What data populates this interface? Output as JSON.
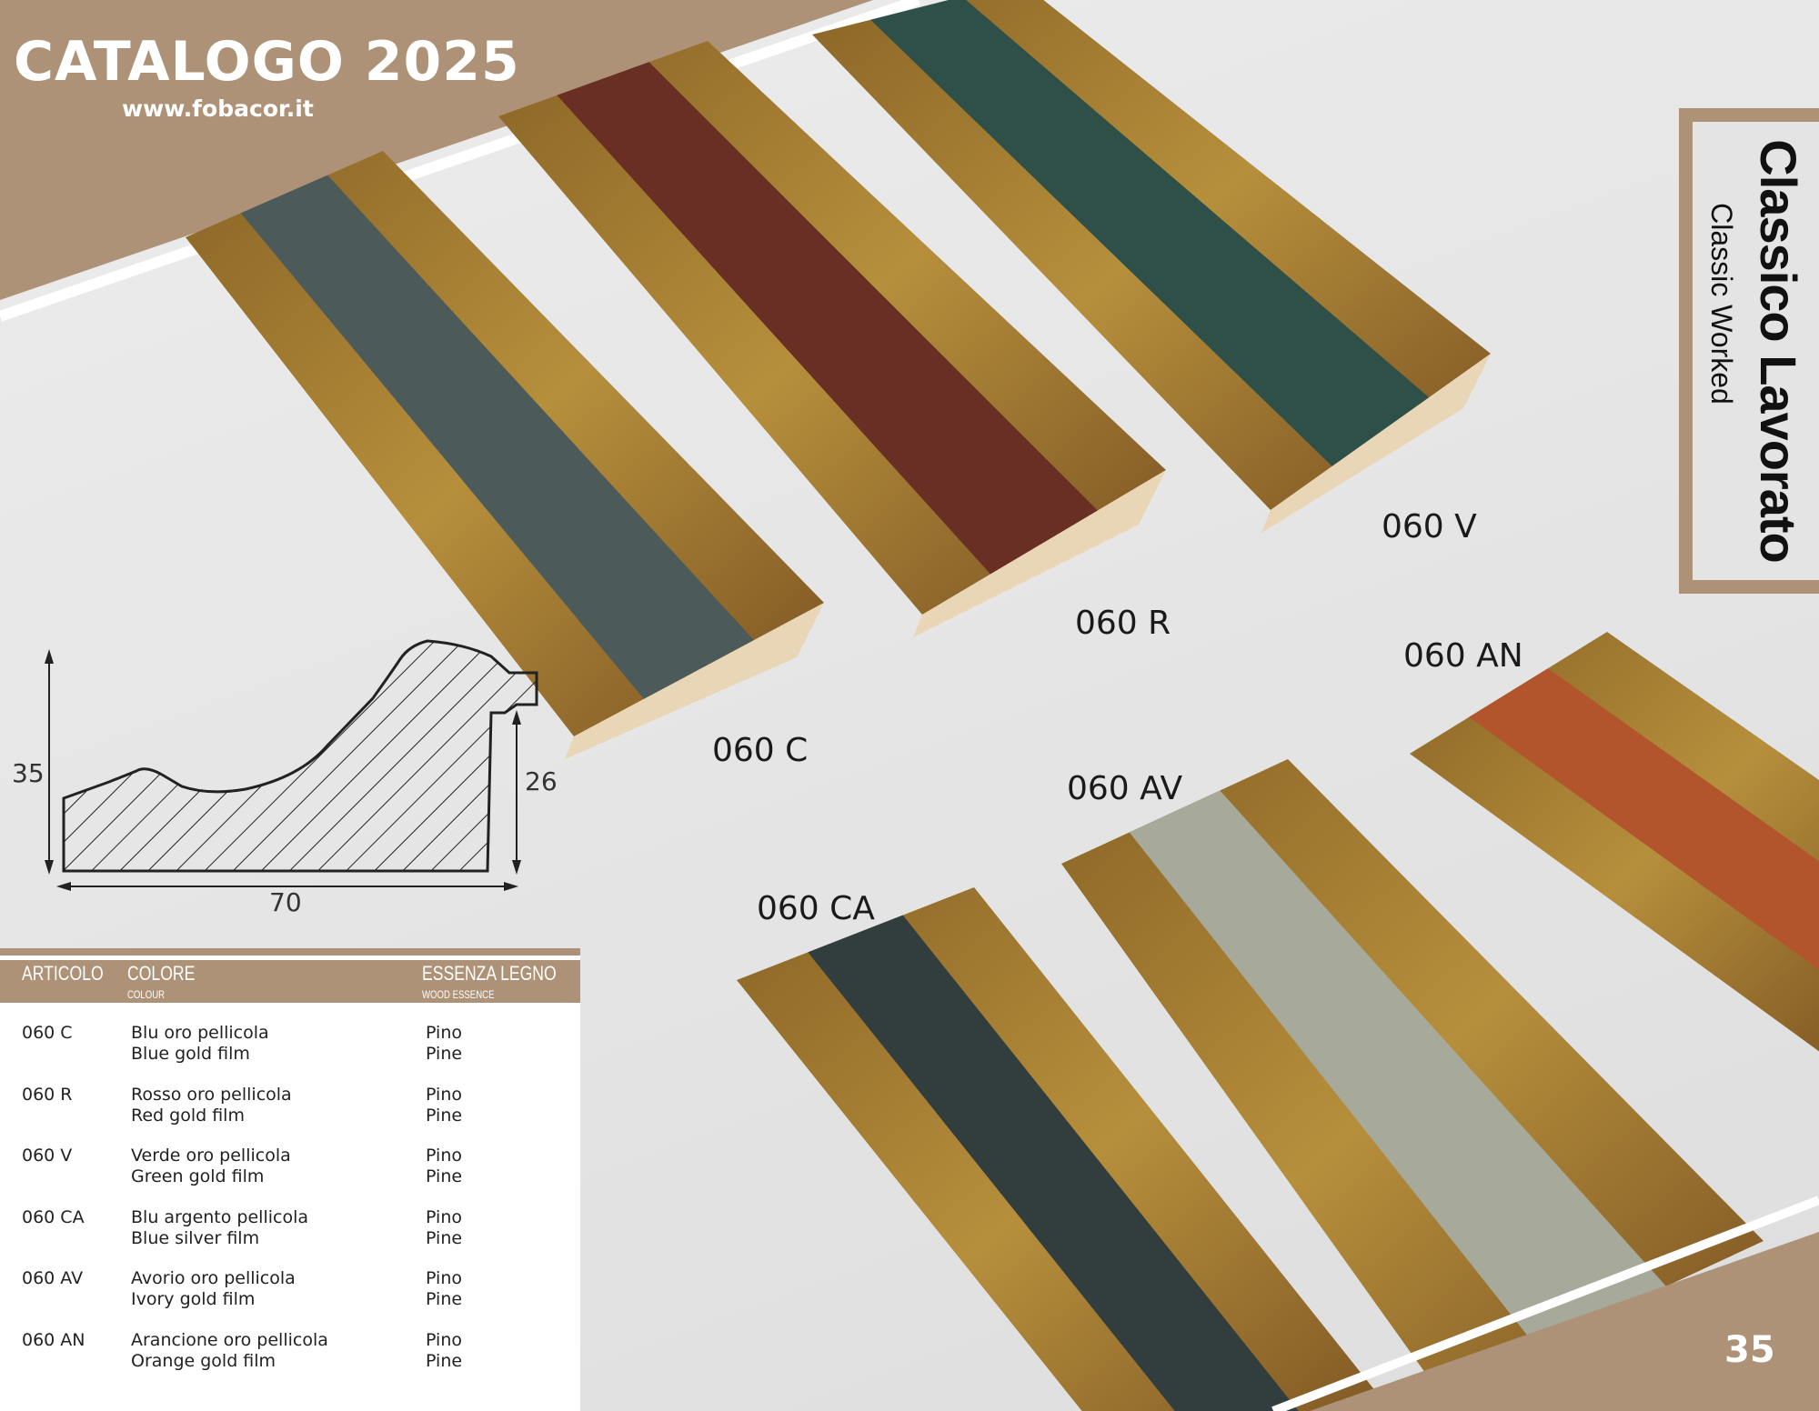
{
  "header": {
    "title": "CATALOGO 2025",
    "website": "www.fobacor.it"
  },
  "section": {
    "title": "Classico Lavorato",
    "subtitle": "Classic Worked"
  },
  "colors": {
    "brand_brown": "#ad9277",
    "background": "#e4e4e4"
  },
  "profile": {
    "height_total": "35",
    "height_rebate": "26",
    "width": "70"
  },
  "products": [
    {
      "code": "060 C",
      "stripe_color": "#4d5a5a"
    },
    {
      "code": "060 R",
      "stripe_color": "#6a2f24"
    },
    {
      "code": "060 V",
      "stripe_color": "#2f5048"
    },
    {
      "code": "060 CA",
      "stripe_color": "#323e3e"
    },
    {
      "code": "060 AV",
      "stripe_color": "#a7a99a"
    },
    {
      "code": "060 AN",
      "stripe_color": "#b3552c"
    }
  ],
  "table": {
    "headers": {
      "articolo": "ARTICOLO",
      "colore": "COLORE",
      "colore_en": "COLOUR",
      "essenza": "ESSENZA LEGNO",
      "essenza_en": "WOOD ESSENCE"
    },
    "rows": [
      {
        "code": "060 C",
        "color_it": "Blu oro pellicola",
        "color_en": "Blue gold film",
        "wood_it": "Pino",
        "wood_en": "Pine"
      },
      {
        "code": "060 R",
        "color_it": "Rosso oro pellicola",
        "color_en": "Red gold film",
        "wood_it": "Pino",
        "wood_en": "Pine"
      },
      {
        "code": "060 V",
        "color_it": "Verde oro pellicola",
        "color_en": "Green gold film",
        "wood_it": "Pino",
        "wood_en": "Pine"
      },
      {
        "code": "060 CA",
        "color_it": "Blu argento pellicola",
        "color_en": "Blue silver film",
        "wood_it": "Pino",
        "wood_en": "Pine"
      },
      {
        "code": "060 AV",
        "color_it": "Avorio oro pellicola",
        "color_en": "Ivory gold film",
        "wood_it": "Pino",
        "wood_en": "Pine"
      },
      {
        "code": "060 AN",
        "color_it": "Arancione oro pellicola",
        "color_en": "Orange gold film",
        "wood_it": "Pino",
        "wood_en": "Pine"
      }
    ]
  },
  "page_number": "35"
}
